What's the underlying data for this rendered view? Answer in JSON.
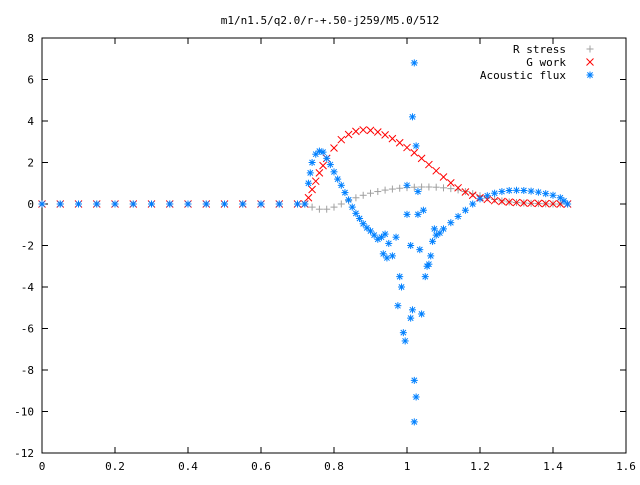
{
  "chart_data": {
    "type": "scatter",
    "title": "m1/n1.5/q2.0/r-+.50-j259/M5.0/512",
    "xlabel": "",
    "ylabel": "",
    "xlim": [
      0,
      1.6
    ],
    "ylim": [
      -12,
      8
    ],
    "x_ticks": [
      0,
      0.2,
      0.4,
      0.6,
      0.8,
      1,
      1.2,
      1.4,
      1.6
    ],
    "x_tick_labels": [
      "0",
      "0.2",
      "0.4",
      "0.6",
      "0.8",
      "1",
      "1.2",
      "1.4",
      "1.6"
    ],
    "y_ticks": [
      -12,
      -10,
      -8,
      -6,
      -4,
      -2,
      0,
      2,
      4,
      6,
      8
    ],
    "y_tick_labels": [
      "-12",
      "-10",
      "-8",
      "-6",
      "-4",
      "-2",
      "0",
      "2",
      "4",
      "6",
      "8"
    ],
    "grid": false,
    "legend_position": "top-right",
    "series": [
      {
        "name": "R stress",
        "marker": "plus",
        "color": "#a0a0a0",
        "points": [
          [
            0.0,
            0.0
          ],
          [
            0.05,
            0.0
          ],
          [
            0.1,
            0.0
          ],
          [
            0.15,
            0.0
          ],
          [
            0.2,
            0.0
          ],
          [
            0.25,
            0.0
          ],
          [
            0.3,
            0.0
          ],
          [
            0.35,
            0.0
          ],
          [
            0.4,
            0.0
          ],
          [
            0.45,
            0.0
          ],
          [
            0.5,
            0.0
          ],
          [
            0.55,
            0.0
          ],
          [
            0.6,
            0.0
          ],
          [
            0.65,
            0.0
          ],
          [
            0.7,
            0.0
          ],
          [
            0.72,
            0.0
          ],
          [
            0.74,
            -0.15
          ],
          [
            0.76,
            -0.25
          ],
          [
            0.78,
            -0.25
          ],
          [
            0.8,
            -0.15
          ],
          [
            0.82,
            0.0
          ],
          [
            0.84,
            0.15
          ],
          [
            0.86,
            0.3
          ],
          [
            0.88,
            0.42
          ],
          [
            0.9,
            0.52
          ],
          [
            0.92,
            0.6
          ],
          [
            0.94,
            0.67
          ],
          [
            0.96,
            0.72
          ],
          [
            0.98,
            0.76
          ],
          [
            1.0,
            0.79
          ],
          [
            1.02,
            0.81
          ],
          [
            1.04,
            0.82
          ],
          [
            1.06,
            0.82
          ],
          [
            1.08,
            0.81
          ],
          [
            1.1,
            0.78
          ],
          [
            1.12,
            0.74
          ],
          [
            1.14,
            0.68
          ],
          [
            1.16,
            0.6
          ],
          [
            1.18,
            0.5
          ],
          [
            1.2,
            0.4
          ],
          [
            1.22,
            0.3
          ],
          [
            1.24,
            0.22
          ],
          [
            1.26,
            0.15
          ],
          [
            1.28,
            0.1
          ],
          [
            1.3,
            0.07
          ],
          [
            1.32,
            0.05
          ],
          [
            1.34,
            0.03
          ],
          [
            1.36,
            0.02
          ],
          [
            1.38,
            0.01
          ],
          [
            1.4,
            0.0
          ],
          [
            1.42,
            0.0
          ],
          [
            1.44,
            0.0
          ]
        ]
      },
      {
        "name": "G work",
        "marker": "cross",
        "color": "#ff0000",
        "points": [
          [
            0.0,
            0.0
          ],
          [
            0.05,
            0.0
          ],
          [
            0.1,
            0.0
          ],
          [
            0.15,
            0.0
          ],
          [
            0.2,
            0.0
          ],
          [
            0.25,
            0.0
          ],
          [
            0.3,
            0.0
          ],
          [
            0.35,
            0.0
          ],
          [
            0.4,
            0.0
          ],
          [
            0.45,
            0.0
          ],
          [
            0.5,
            0.0
          ],
          [
            0.55,
            0.0
          ],
          [
            0.6,
            0.0
          ],
          [
            0.65,
            0.0
          ],
          [
            0.7,
            0.0
          ],
          [
            0.72,
            0.0
          ],
          [
            0.73,
            0.3
          ],
          [
            0.74,
            0.7
          ],
          [
            0.75,
            1.1
          ],
          [
            0.76,
            1.5
          ],
          [
            0.77,
            1.85
          ],
          [
            0.78,
            2.2
          ],
          [
            0.8,
            2.7
          ],
          [
            0.82,
            3.1
          ],
          [
            0.84,
            3.35
          ],
          [
            0.86,
            3.5
          ],
          [
            0.88,
            3.57
          ],
          [
            0.9,
            3.55
          ],
          [
            0.92,
            3.47
          ],
          [
            0.94,
            3.33
          ],
          [
            0.96,
            3.15
          ],
          [
            0.98,
            2.95
          ],
          [
            1.0,
            2.72
          ],
          [
            1.02,
            2.47
          ],
          [
            1.04,
            2.2
          ],
          [
            1.06,
            1.9
          ],
          [
            1.08,
            1.6
          ],
          [
            1.1,
            1.3
          ],
          [
            1.12,
            1.02
          ],
          [
            1.14,
            0.78
          ],
          [
            1.16,
            0.58
          ],
          [
            1.18,
            0.42
          ],
          [
            1.2,
            0.3
          ],
          [
            1.22,
            0.22
          ],
          [
            1.24,
            0.16
          ],
          [
            1.26,
            0.12
          ],
          [
            1.28,
            0.09
          ],
          [
            1.3,
            0.07
          ],
          [
            1.32,
            0.05
          ],
          [
            1.34,
            0.04
          ],
          [
            1.36,
            0.03
          ],
          [
            1.38,
            0.02
          ],
          [
            1.4,
            0.01
          ],
          [
            1.42,
            0.0
          ],
          [
            1.44,
            0.0
          ]
        ]
      },
      {
        "name": "Acoustic flux",
        "marker": "star",
        "color": "#0080ff",
        "points": [
          [
            0.0,
            0.0
          ],
          [
            0.05,
            0.0
          ],
          [
            0.1,
            0.0
          ],
          [
            0.15,
            0.0
          ],
          [
            0.2,
            0.0
          ],
          [
            0.25,
            0.0
          ],
          [
            0.3,
            0.0
          ],
          [
            0.35,
            0.0
          ],
          [
            0.4,
            0.0
          ],
          [
            0.45,
            0.0
          ],
          [
            0.5,
            0.0
          ],
          [
            0.55,
            0.0
          ],
          [
            0.6,
            0.0
          ],
          [
            0.65,
            0.0
          ],
          [
            0.7,
            0.0
          ],
          [
            0.72,
            0.0
          ],
          [
            0.73,
            1.0
          ],
          [
            0.735,
            1.5
          ],
          [
            0.74,
            2.0
          ],
          [
            0.75,
            2.4
          ],
          [
            0.76,
            2.55
          ],
          [
            0.77,
            2.5
          ],
          [
            0.78,
            2.2
          ],
          [
            0.79,
            1.9
          ],
          [
            0.8,
            1.55
          ],
          [
            0.81,
            1.2
          ],
          [
            0.82,
            0.9
          ],
          [
            0.83,
            0.55
          ],
          [
            0.84,
            0.2
          ],
          [
            0.85,
            -0.15
          ],
          [
            0.86,
            -0.45
          ],
          [
            0.87,
            -0.7
          ],
          [
            0.88,
            -0.95
          ],
          [
            0.89,
            -1.15
          ],
          [
            0.9,
            -1.3
          ],
          [
            0.91,
            -1.5
          ],
          [
            0.92,
            -1.7
          ],
          [
            0.93,
            -1.6
          ],
          [
            0.94,
            -1.45
          ],
          [
            0.935,
            -2.4
          ],
          [
            0.945,
            -2.6
          ],
          [
            0.95,
            -1.9
          ],
          [
            0.96,
            -2.5
          ],
          [
            0.97,
            -1.6
          ],
          [
            0.98,
            -3.5
          ],
          [
            0.975,
            -4.9
          ],
          [
            0.985,
            -4.0
          ],
          [
            0.99,
            -6.2
          ],
          [
            0.995,
            -6.6
          ],
          [
            1.0,
            0.9
          ],
          [
            1.0,
            -0.5
          ],
          [
            1.01,
            -2.0
          ],
          [
            1.01,
            -5.5
          ],
          [
            1.015,
            -5.1
          ],
          [
            1.02,
            6.8
          ],
          [
            1.015,
            4.2
          ],
          [
            1.025,
            2.8
          ],
          [
            1.03,
            0.6
          ],
          [
            1.03,
            -0.5
          ],
          [
            1.02,
            -8.5
          ],
          [
            1.025,
            -9.3
          ],
          [
            1.02,
            -10.5
          ],
          [
            1.035,
            -2.2
          ],
          [
            1.04,
            -5.3
          ],
          [
            1.045,
            -0.3
          ],
          [
            1.05,
            -3.5
          ],
          [
            1.055,
            -3.0
          ],
          [
            1.06,
            -2.9
          ],
          [
            1.065,
            -2.5
          ],
          [
            1.07,
            -1.8
          ],
          [
            1.075,
            -1.2
          ],
          [
            1.08,
            -1.5
          ],
          [
            1.09,
            -1.4
          ],
          [
            1.1,
            -1.2
          ],
          [
            1.12,
            -0.9
          ],
          [
            1.14,
            -0.6
          ],
          [
            1.16,
            -0.3
          ],
          [
            1.18,
            0.0
          ],
          [
            1.2,
            0.25
          ],
          [
            1.22,
            0.4
          ],
          [
            1.24,
            0.52
          ],
          [
            1.26,
            0.6
          ],
          [
            1.28,
            0.65
          ],
          [
            1.3,
            0.66
          ],
          [
            1.32,
            0.65
          ],
          [
            1.34,
            0.62
          ],
          [
            1.36,
            0.57
          ],
          [
            1.38,
            0.5
          ],
          [
            1.4,
            0.42
          ],
          [
            1.42,
            0.3
          ],
          [
            1.43,
            0.15
          ],
          [
            1.44,
            0.0
          ]
        ]
      }
    ]
  }
}
